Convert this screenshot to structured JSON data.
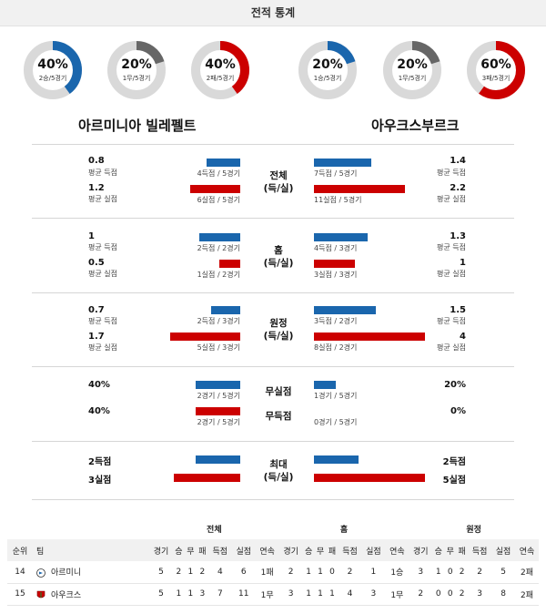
{
  "header": {
    "title": "전적 통계"
  },
  "colors": {
    "blue": "#1a66ad",
    "red": "#cc0000",
    "gray": "#666666",
    "track": "#d9d9d9"
  },
  "teams": {
    "home": "아르미니아 빌레펠트",
    "away": "아우크스부르크"
  },
  "donuts": [
    {
      "pct": "40%",
      "record": "2승/5경기",
      "fraction": 0.4,
      "color": "blue"
    },
    {
      "pct": "20%",
      "record": "1무/5경기",
      "fraction": 0.2,
      "color": "gray"
    },
    {
      "pct": "40%",
      "record": "2패/5경기",
      "fraction": 0.4,
      "color": "red"
    },
    {
      "pct": "20%",
      "record": "1승/5경기",
      "fraction": 0.2,
      "color": "blue"
    },
    {
      "pct": "20%",
      "record": "1무/5경기",
      "fraction": 0.2,
      "color": "gray"
    },
    {
      "pct": "60%",
      "record": "3패/5경기",
      "fraction": 0.6,
      "color": "red"
    }
  ],
  "sections": [
    {
      "label1": "전체",
      "label2": "(득/실)",
      "home_scored": {
        "value": "0.8",
        "sub": "평균 득점",
        "cap": "4득점 / 5경기",
        "fraction": 0.3
      },
      "home_conceded": {
        "value": "1.2",
        "sub": "평균 실점",
        "cap": "6실점 / 5경기",
        "fraction": 0.45
      },
      "away_scored": {
        "value": "1.4",
        "sub": "평균 득점",
        "cap": "7득점 / 5경기",
        "fraction": 0.52
      },
      "away_conceded": {
        "value": "2.2",
        "sub": "평균 실점",
        "cap": "11실점 / 5경기",
        "fraction": 0.82
      }
    },
    {
      "label1": "홈",
      "label2": "(득/실)",
      "home_scored": {
        "value": "1",
        "sub": "평균 득점",
        "cap": "2득점 / 2경기",
        "fraction": 0.37
      },
      "home_conceded": {
        "value": "0.5",
        "sub": "평균 실점",
        "cap": "1실점 / 2경기",
        "fraction": 0.19
      },
      "away_scored": {
        "value": "1.3",
        "sub": "평균 득점",
        "cap": "4득점 / 3경기",
        "fraction": 0.48
      },
      "away_conceded": {
        "value": "1",
        "sub": "평균 실점",
        "cap": "3실점 / 3경기",
        "fraction": 0.37
      }
    },
    {
      "label1": "원정",
      "label2": "(득/실)",
      "home_scored": {
        "value": "0.7",
        "sub": "평균 득점",
        "cap": "2득점 / 3경기",
        "fraction": 0.26
      },
      "home_conceded": {
        "value": "1.7",
        "sub": "평균 실점",
        "cap": "5실점 / 3경기",
        "fraction": 0.63
      },
      "away_scored": {
        "value": "1.5",
        "sub": "평균 득점",
        "cap": "3득점 / 2경기",
        "fraction": 0.56
      },
      "away_conceded": {
        "value": "4",
        "sub": "평균 실점",
        "cap": "8실점 / 2경기",
        "fraction": 1.0
      }
    }
  ],
  "shutout": {
    "row1_label": "무실점",
    "row2_label": "무득점",
    "home_row1": {
      "value": "40%",
      "cap": "2경기 / 5경기",
      "fraction": 0.4
    },
    "home_row2": {
      "value": "40%",
      "cap": "2경기 / 5경기",
      "fraction": 0.4
    },
    "away_row1": {
      "value": "20%",
      "cap": "1경기 / 5경기",
      "fraction": 0.2
    },
    "away_row2": {
      "value": "0%",
      "cap": "0경기 / 5경기",
      "fraction": 0.0
    }
  },
  "max": {
    "label1": "최대",
    "label2": "(득/실)",
    "home_scored": {
      "value": "2득점",
      "fraction": 0.4
    },
    "home_conceded": {
      "value": "3실점",
      "fraction": 0.6
    },
    "away_scored": {
      "value": "2득점",
      "fraction": 0.4
    },
    "away_conceded": {
      "value": "5실점",
      "fraction": 1.0
    }
  },
  "standings": {
    "groups": [
      "전체",
      "홈",
      "원정"
    ],
    "col_rank": "순위",
    "col_team": "팀",
    "cols": [
      "경기",
      "승",
      "무",
      "패",
      "득점",
      "실점",
      "연속"
    ],
    "rows": [
      {
        "rank": "14",
        "team": "아르미니",
        "all": [
          "5",
          "2",
          "1",
          "2",
          "4",
          "6",
          "1패"
        ],
        "home": [
          "2",
          "1",
          "1",
          "0",
          "2",
          "1",
          "1승"
        ],
        "away": [
          "3",
          "1",
          "0",
          "2",
          "2",
          "5",
          "2패"
        ]
      },
      {
        "rank": "15",
        "team": "아우크스",
        "all": [
          "5",
          "1",
          "1",
          "3",
          "7",
          "11",
          "1무"
        ],
        "home": [
          "3",
          "1",
          "1",
          "1",
          "4",
          "3",
          "1무"
        ],
        "away": [
          "2",
          "0",
          "0",
          "2",
          "3",
          "8",
          "2패"
        ]
      }
    ]
  }
}
